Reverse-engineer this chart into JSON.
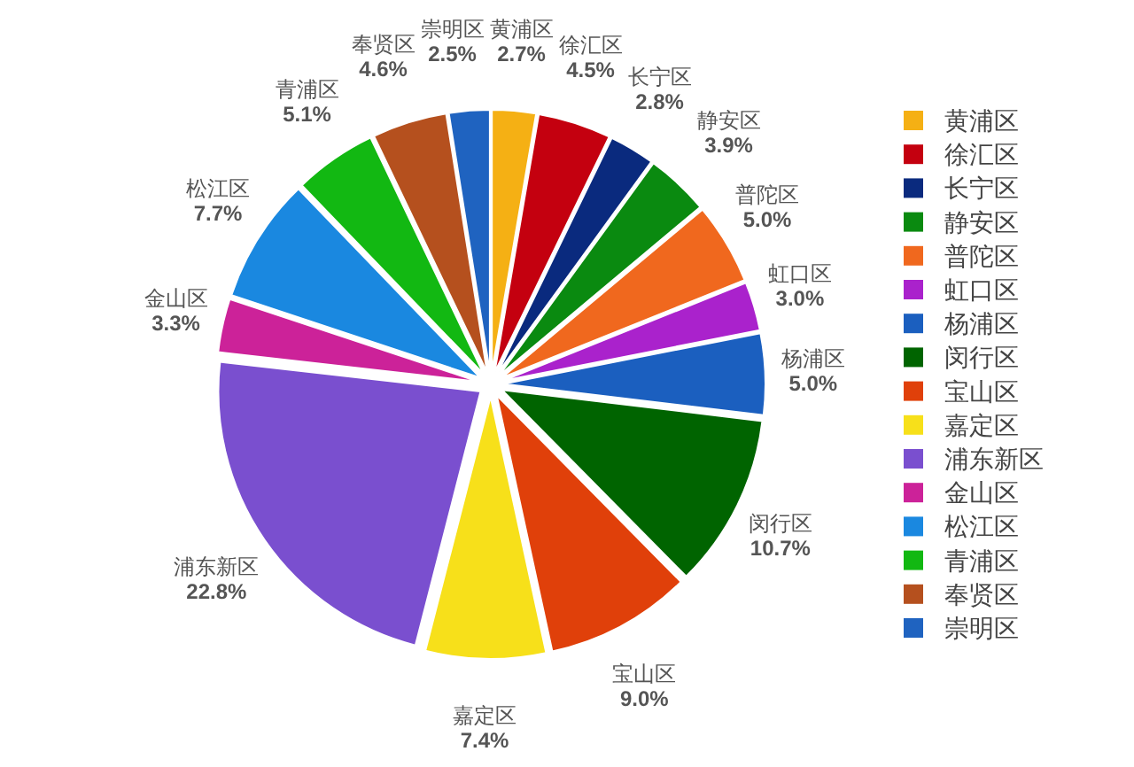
{
  "chart_data": {
    "type": "pie",
    "categories": [
      "黄浦区",
      "徐汇区",
      "长宁区",
      "静安区",
      "普陀区",
      "虹口区",
      "杨浦区",
      "闵行区",
      "宝山区",
      "嘉定区",
      "浦东新区",
      "金山区",
      "松江区",
      "青浦区",
      "奉贤区",
      "崇明区"
    ],
    "values": [
      2.7,
      4.5,
      2.8,
      3.9,
      5.0,
      3.0,
      5.0,
      10.7,
      9.0,
      7.4,
      22.8,
      3.3,
      7.7,
      5.1,
      4.6,
      2.5
    ],
    "value_labels": [
      "2.7%",
      "4.5%",
      "2.8%",
      "3.9%",
      "5.0%",
      "3.0%",
      "5.0%",
      "10.7%",
      "9.0%",
      "7.4%",
      "22.8%",
      "3.3%",
      "7.7%",
      "5.1%",
      "4.6%",
      "2.5%"
    ],
    "colors": [
      "#f5b014",
      "#c4000f",
      "#0a2a7e",
      "#0a8a10",
      "#f0681e",
      "#aa22cc",
      "#1b5fbf",
      "#006400",
      "#e0400a",
      "#f7e01a",
      "#7a4fcf",
      "#cc2299",
      "#1a88e0",
      "#12b812",
      "#b5501e",
      "#1f63c0"
    ],
    "legend": "right"
  }
}
